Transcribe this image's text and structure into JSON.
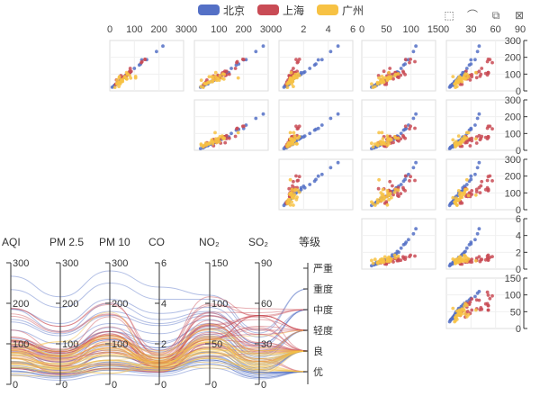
{
  "legend": [
    {
      "name": "北京",
      "color": "#5470c6"
    },
    {
      "name": "上海",
      "color": "#c94b55"
    },
    {
      "name": "广州",
      "color": "#f7c244"
    }
  ],
  "toolbox": [
    {
      "name": "brush-rect-icon",
      "glyph": "⬚"
    },
    {
      "name": "brush-lasso-icon",
      "glyph": "⌒"
    },
    {
      "name": "brush-keep-icon",
      "glyph": "⧉"
    },
    {
      "name": "brush-clear-icon",
      "glyph": "⊠"
    }
  ],
  "chart_data": {
    "type": "scatter-matrix+parallel",
    "dimensions": [
      {
        "key": "AQI",
        "label": "AQI",
        "ylim": [
          0,
          300
        ],
        "scatterTicks": null
      },
      {
        "key": "PM25",
        "label": "PM 2.5",
        "ylim": [
          0,
          300
        ],
        "scatterTicks": [
          0,
          100,
          200,
          300
        ]
      },
      {
        "key": "PM10",
        "label": "PM 10",
        "ylim": [
          0,
          300
        ],
        "scatterTicks": [
          0,
          100,
          200,
          300
        ]
      },
      {
        "key": "CO",
        "label": "CO",
        "ylim": [
          0,
          6
        ],
        "scatterTicks": [
          0,
          2,
          4,
          6
        ]
      },
      {
        "key": "NO2",
        "label": "NO₂",
        "ylim": [
          0,
          150
        ],
        "scatterTicks": [
          0,
          50,
          100,
          150
        ]
      },
      {
        "key": "SO2",
        "label": "SO₂",
        "ylim": [
          0,
          90
        ],
        "scatterTicks": [
          0,
          30,
          60,
          90
        ]
      }
    ],
    "scatter_y_axes": [
      {
        "dim": "AQI",
        "ticks": [
          0,
          100,
          200,
          300
        ]
      },
      {
        "dim": "PM25",
        "ticks": [
          0,
          100,
          200,
          300
        ]
      },
      {
        "dim": "PM10",
        "ticks": [
          0,
          100,
          200,
          300
        ]
      },
      {
        "dim": "CO",
        "ticks": [
          0,
          2,
          4,
          6
        ]
      },
      {
        "dim": "NO2",
        "ticks": [
          0,
          50,
          100,
          150
        ]
      }
    ],
    "parallel_ticks": {
      "AQI": [
        0,
        100,
        200,
        300
      ],
      "PM25": [
        0,
        100,
        200,
        300
      ],
      "PM10": [
        0,
        100,
        200,
        300
      ],
      "CO": [
        0,
        2,
        4,
        6
      ],
      "NO2": [
        0,
        50,
        100,
        150
      ],
      "SO2": [
        0,
        30,
        60,
        90
      ]
    },
    "grade_axis": {
      "label": "等级",
      "categories": [
        "优",
        "良",
        "轻度",
        "中度",
        "重度",
        "严重"
      ]
    },
    "series": [
      {
        "name": "北京",
        "color": "#5470c6",
        "points": [
          [
            55,
            40,
            70,
            1.0,
            40,
            10,
            1
          ],
          [
            25,
            15,
            35,
            0.6,
            25,
            5,
            0
          ],
          [
            56,
            35,
            70,
            1.1,
            45,
            12,
            1
          ],
          [
            33,
            20,
            40,
            0.7,
            30,
            8,
            0
          ],
          [
            42,
            28,
            55,
            0.8,
            35,
            9,
            0
          ],
          [
            82,
            55,
            100,
            1.4,
            60,
            15,
            1
          ],
          [
            74,
            50,
            85,
            1.2,
            55,
            14,
            1
          ],
          [
            78,
            55,
            95,
            1.3,
            58,
            16,
            1
          ],
          [
            267,
            216,
            280,
            4.8,
            110,
            40,
            4
          ],
          [
            185,
            130,
            200,
            3.2,
            90,
            30,
            3
          ],
          [
            39,
            25,
            45,
            0.8,
            30,
            8,
            0
          ],
          [
            41,
            28,
            50,
            0.7,
            32,
            9,
            0
          ],
          [
            64,
            45,
            80,
            1.1,
            50,
            12,
            1
          ],
          [
            108,
            80,
            130,
            1.8,
            70,
            20,
            2
          ],
          [
            108,
            80,
            140,
            2.0,
            75,
            22,
            2
          ],
          [
            33,
            20,
            40,
            0.6,
            28,
            6,
            0
          ],
          [
            94,
            65,
            110,
            1.6,
            65,
            18,
            1
          ],
          [
            186,
            150,
            210,
            3.5,
            95,
            35,
            3
          ],
          [
            57,
            40,
            70,
            1.0,
            45,
            11,
            1
          ],
          [
            22,
            10,
            25,
            0.4,
            20,
            4,
            0
          ],
          [
            39,
            25,
            45,
            0.6,
            30,
            7,
            0
          ],
          [
            94,
            70,
            110,
            1.7,
            62,
            19,
            1
          ],
          [
            99,
            75,
            120,
            1.8,
            68,
            21,
            1
          ],
          [
            31,
            18,
            35,
            0.5,
            25,
            5,
            0
          ],
          [
            42,
            28,
            50,
            0.7,
            34,
            8,
            0
          ],
          [
            154,
            120,
            170,
            2.9,
            85,
            28,
            3
          ],
          [
            234,
            190,
            250,
            4.2,
            105,
            38,
            4
          ],
          [
            160,
            125,
            180,
            3.0,
            88,
            30,
            3
          ],
          [
            134,
            100,
            150,
            2.5,
            80,
            25,
            2
          ],
          [
            52,
            35,
            60,
            0.9,
            40,
            10,
            1
          ],
          [
            46,
            30,
            55,
            0.8,
            36,
            9,
            0
          ],
          [
            113,
            85,
            130,
            2.1,
            72,
            23,
            2
          ]
        ]
      },
      {
        "name": "上海",
        "color": "#c94b55",
        "points": [
          [
            91,
            45,
            125,
            0.82,
            34,
            23,
            1
          ],
          [
            65,
            27,
            78,
            0.86,
            45,
            29,
            1
          ],
          [
            83,
            60,
            84,
            1.09,
            73,
            27,
            1
          ],
          [
            109,
            81,
            121,
            1.28,
            68,
            51,
            2
          ],
          [
            106,
            77,
            114,
            1.07,
            55,
            51,
            2
          ],
          [
            109,
            81,
            121,
            1.28,
            68,
            51,
            2
          ],
          [
            106,
            77,
            114,
            1.07,
            55,
            51,
            2
          ],
          [
            89,
            65,
            78,
            0.86,
            51,
            26,
            1
          ],
          [
            53,
            33,
            47,
            0.64,
            50,
            17,
            1
          ],
          [
            80,
            55,
            80,
            1.01,
            75,
            24,
            1
          ],
          [
            117,
            81,
            124,
            1.03,
            45,
            24,
            2
          ],
          [
            99,
            71,
            142,
            1.1,
            62,
            42,
            1
          ],
          [
            95,
            69,
            130,
            1.28,
            74,
            50,
            1
          ],
          [
            116,
            87,
            131,
            1.47,
            84,
            40,
            2
          ],
          [
            108,
            80,
            121,
            1.3,
            85,
            37,
            2
          ],
          [
            134,
            83,
            167,
            1.16,
            57,
            43,
            2
          ],
          [
            79,
            43,
            107,
            1.05,
            59,
            37,
            1
          ],
          [
            71,
            46,
            89,
            0.86,
            64,
            25,
            1
          ],
          [
            97,
            71,
            113,
            1.17,
            88,
            31,
            1
          ],
          [
            84,
            57,
            91,
            0.85,
            55,
            31,
            1
          ],
          [
            87,
            63,
            101,
            0.9,
            56,
            41,
            1
          ],
          [
            104,
            77,
            119,
            1.09,
            73,
            48,
            2
          ],
          [
            87,
            62,
            100,
            1.0,
            72,
            28,
            1
          ],
          [
            168,
            128,
            172,
            1.49,
            97,
            56,
            3
          ],
          [
            65,
            45,
            51,
            0.74,
            39,
            17,
            1
          ],
          [
            39,
            24,
            38,
            0.61,
            47,
            17,
            0
          ],
          [
            39,
            24,
            39,
            0.59,
            50,
            19,
            0
          ],
          [
            93,
            68,
            96,
            1.05,
            79,
            29,
            1
          ],
          [
            188,
            143,
            197,
            1.66,
            99,
            51,
            3
          ],
          [
            174,
            131,
            174,
            1.55,
            108,
            50,
            3
          ],
          [
            187,
            143,
            201,
            1.39,
            89,
            53,
            3
          ]
        ]
      },
      {
        "name": "广州",
        "color": "#f7c244",
        "points": [
          [
            26,
            37,
            27,
            1.16,
            27,
            13,
            0
          ],
          [
            85,
            62,
            71,
            1.19,
            60,
            8,
            1
          ],
          [
            78,
            38,
            74,
            1.46,
            47,
            17,
            1
          ],
          [
            21,
            21,
            36,
            0.69,
            23,
            11,
            0
          ],
          [
            41,
            42,
            46,
            1.03,
            20,
            10,
            0
          ],
          [
            56,
            52,
            69,
            1.12,
            38,
            12,
            1
          ],
          [
            64,
            30,
            28,
            0.92,
            52,
            13,
            1
          ],
          [
            55,
            48,
            74,
            1.08,
            44,
            19,
            1
          ],
          [
            76,
            85,
            113,
            1.28,
            52,
            15,
            1
          ],
          [
            91,
            81,
            104,
            1.65,
            67,
            22,
            1
          ],
          [
            84,
            39,
            60,
            1.42,
            55,
            16,
            1
          ],
          [
            64,
            51,
            101,
            1.03,
            39,
            17,
            1
          ],
          [
            70,
            69,
            120,
            1.06,
            43,
            23,
            1
          ],
          [
            77,
            105,
            178,
            0.92,
            35,
            25,
            1
          ],
          [
            109,
            68,
            87,
            0.99,
            55,
            36,
            2
          ],
          [
            73,
            68,
            97,
            0.93,
            58,
            19,
            1
          ],
          [
            86,
            105,
            84,
            1.2,
            41,
            27,
            1
          ],
          [
            73,
            68,
            97,
            0.96,
            53,
            22,
            1
          ],
          [
            44,
            29,
            40,
            0.77,
            32,
            11,
            0
          ],
          [
            50,
            43,
            59,
            0.76,
            32,
            12,
            0
          ],
          [
            63,
            46,
            91,
            0.86,
            43,
            16,
            1
          ],
          [
            79,
            59,
            90,
            1.26,
            57,
            21,
            1
          ],
          [
            101,
            72,
            116,
            1.54,
            74,
            23,
            2
          ],
          [
            98,
            73,
            121,
            1.33,
            69,
            25,
            1
          ],
          [
            51,
            38,
            58,
            0.82,
            41,
            14,
            1
          ],
          [
            41,
            30,
            48,
            0.66,
            33,
            11,
            0
          ],
          [
            48,
            37,
            53,
            0.79,
            39,
            14,
            0
          ],
          [
            52,
            40,
            60,
            0.85,
            45,
            15,
            1
          ],
          [
            67,
            51,
            79,
            1.12,
            52,
            18,
            1
          ]
        ]
      }
    ]
  }
}
